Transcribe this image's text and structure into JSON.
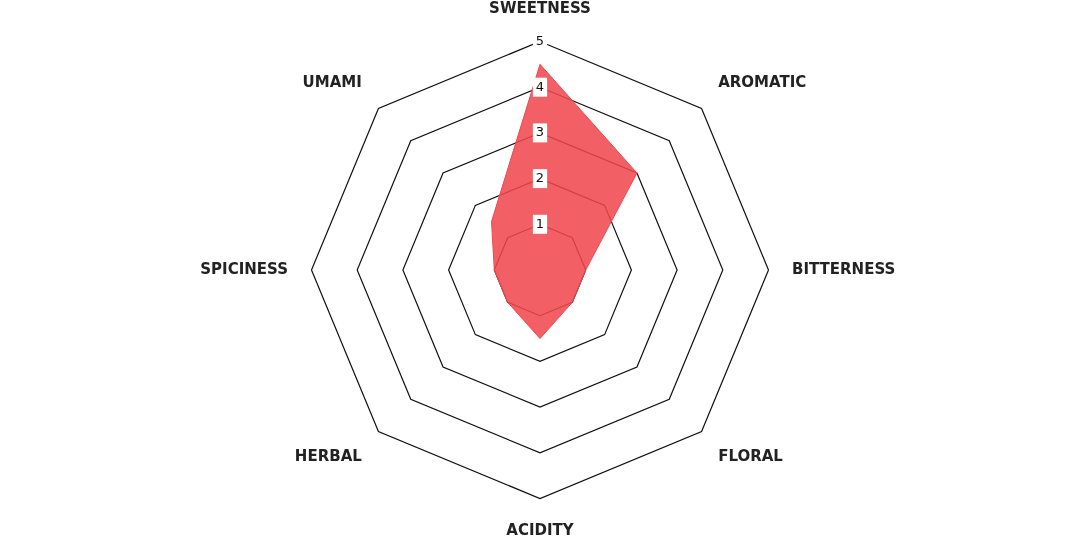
{
  "chart_data": {
    "type": "radar",
    "categories": [
      "SWEETNESS",
      "AROMATIC",
      "BITTERNESS",
      "FLORAL",
      "ACIDITY",
      "HERBAL",
      "SPICINESS",
      "UMAMI"
    ],
    "series": [
      {
        "color": "#f0474f",
        "values": [
          4.5,
          3,
          1,
          1,
          1.5,
          1,
          1,
          1.5
        ]
      }
    ],
    "ylim": [
      0,
      5
    ],
    "yticks": [
      1,
      2,
      3,
      4,
      5
    ],
    "grid": true,
    "legend": false,
    "marker": "none"
  }
}
